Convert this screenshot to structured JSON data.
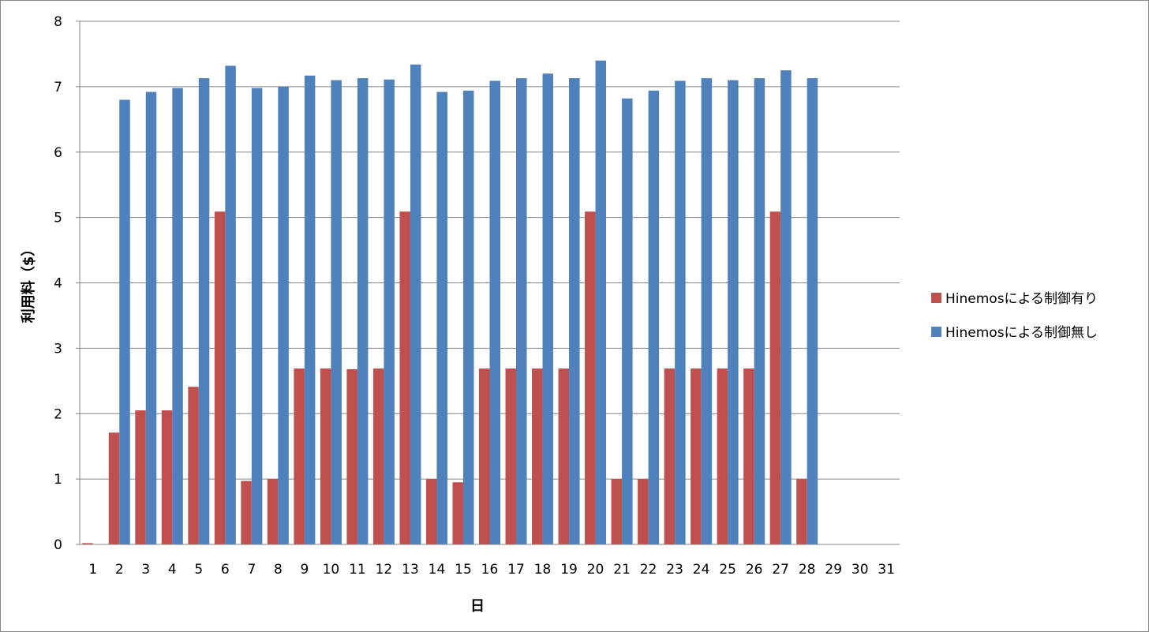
{
  "chart_data": {
    "type": "bar",
    "xlabel": "日",
    "ylabel": "利用料（$）",
    "ylim": [
      0,
      8
    ],
    "yticks": [
      0,
      1,
      2,
      3,
      4,
      5,
      6,
      7,
      8
    ],
    "grid": true,
    "legend_position": "right",
    "categories": [
      "1",
      "2",
      "3",
      "4",
      "5",
      "6",
      "7",
      "8",
      "9",
      "10",
      "11",
      "12",
      "13",
      "14",
      "15",
      "16",
      "17",
      "18",
      "19",
      "20",
      "21",
      "22",
      "23",
      "24",
      "25",
      "26",
      "27",
      "28",
      "29",
      "30",
      "31"
    ],
    "series": [
      {
        "name": "Hinemosによる制御有り",
        "color": "#c0504d",
        "values": [
          0.02,
          1.71,
          2.05,
          2.05,
          2.41,
          5.09,
          0.97,
          1.0,
          2.69,
          2.69,
          2.68,
          2.69,
          5.09,
          1.0,
          0.95,
          2.69,
          2.69,
          2.69,
          2.69,
          5.09,
          1.0,
          1.0,
          2.69,
          2.69,
          2.69,
          2.69,
          5.09,
          1.0,
          null,
          null,
          null
        ]
      },
      {
        "name": "Hinemosによる制御無し",
        "color": "#4f81bd",
        "values": [
          null,
          6.8,
          6.92,
          6.98,
          7.13,
          7.32,
          6.98,
          7.0,
          7.17,
          7.1,
          7.13,
          7.11,
          7.34,
          6.92,
          6.94,
          7.09,
          7.13,
          7.2,
          7.13,
          7.4,
          6.82,
          6.94,
          7.09,
          7.13,
          7.1,
          7.13,
          7.25,
          7.13,
          null,
          null,
          null
        ]
      }
    ]
  }
}
